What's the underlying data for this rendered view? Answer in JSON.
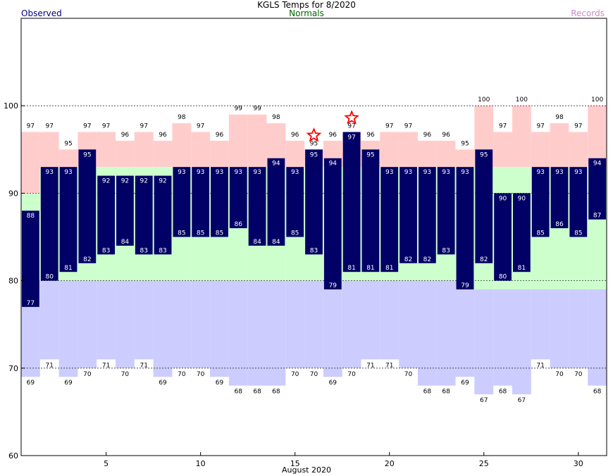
{
  "header": {
    "title": "KGLS Temps for 8/2020",
    "observed_label": "Observed",
    "normals_label": "Normals",
    "records_label": "Records"
  },
  "colors": {
    "observed": "#000066",
    "normal_band": "#ccffcc",
    "record_high": "#ffcccc",
    "record_low": "#ccccff",
    "star": "#ff0000",
    "observed_label": "#000080",
    "normals_label": "#006600",
    "records_label": "#cc88cc"
  },
  "chart_data": {
    "type": "bar",
    "title": "KGLS Temps for 8/2020",
    "xlabel": "August 2020",
    "ylabel": "",
    "ylim": [
      60,
      110
    ],
    "xlim": [
      0.5,
      31.5
    ],
    "yticks": [
      60,
      70,
      80,
      90,
      100
    ],
    "xticks": [
      5,
      10,
      15,
      20,
      25,
      30
    ],
    "grid_y_dashed": [
      70,
      80,
      90,
      100
    ],
    "days": [
      1,
      2,
      3,
      4,
      5,
      6,
      7,
      8,
      9,
      10,
      11,
      12,
      13,
      14,
      15,
      16,
      17,
      18,
      19,
      20,
      21,
      22,
      23,
      24,
      25,
      26,
      27,
      28,
      29,
      30,
      31
    ],
    "series": [
      {
        "name": "Observed",
        "values_high": [
          88,
          93,
          93,
          95,
          92,
          92,
          92,
          92,
          93,
          93,
          93,
          93,
          93,
          94,
          93,
          95,
          94,
          97,
          95,
          93,
          93,
          93,
          93,
          93,
          95,
          90,
          90,
          93,
          93,
          93,
          94
        ],
        "values_low": [
          77,
          80,
          81,
          82,
          83,
          84,
          83,
          83,
          85,
          85,
          85,
          86,
          84,
          84,
          85,
          83,
          79,
          81,
          81,
          81,
          82,
          82,
          83,
          79,
          82,
          80,
          81,
          85,
          86,
          85,
          87
        ]
      },
      {
        "name": "Normals",
        "values_high": [
          90,
          93,
          93,
          93,
          93,
          93,
          93,
          93,
          93,
          93,
          93,
          93,
          93,
          93,
          93,
          93,
          93,
          93,
          93,
          93,
          93,
          93,
          93,
          93,
          93,
          93,
          93,
          93,
          93,
          93,
          93
        ],
        "values_low": [
          80,
          80,
          80,
          80,
          80,
          80,
          80,
          80,
          80,
          80,
          80,
          80,
          80,
          80,
          80,
          80,
          80,
          80,
          80,
          80,
          80,
          80,
          80,
          80,
          79,
          79,
          79,
          79,
          79,
          79,
          79
        ]
      },
      {
        "name": "Records",
        "values_high": [
          97,
          97,
          95,
          97,
          97,
          96,
          97,
          96,
          98,
          97,
          96,
          99,
          99,
          98,
          96,
          95,
          96,
          97,
          96,
          97,
          97,
          96,
          96,
          95,
          100,
          97,
          100,
          97,
          98,
          97,
          100
        ],
        "values_low": [
          69,
          71,
          69,
          70,
          71,
          70,
          71,
          69,
          70,
          70,
          69,
          68,
          68,
          68,
          70,
          70,
          69,
          70,
          71,
          71,
          70,
          68,
          68,
          69,
          67,
          68,
          67,
          71,
          70,
          70,
          68
        ]
      }
    ],
    "record_markers": [
      16,
      18
    ]
  }
}
